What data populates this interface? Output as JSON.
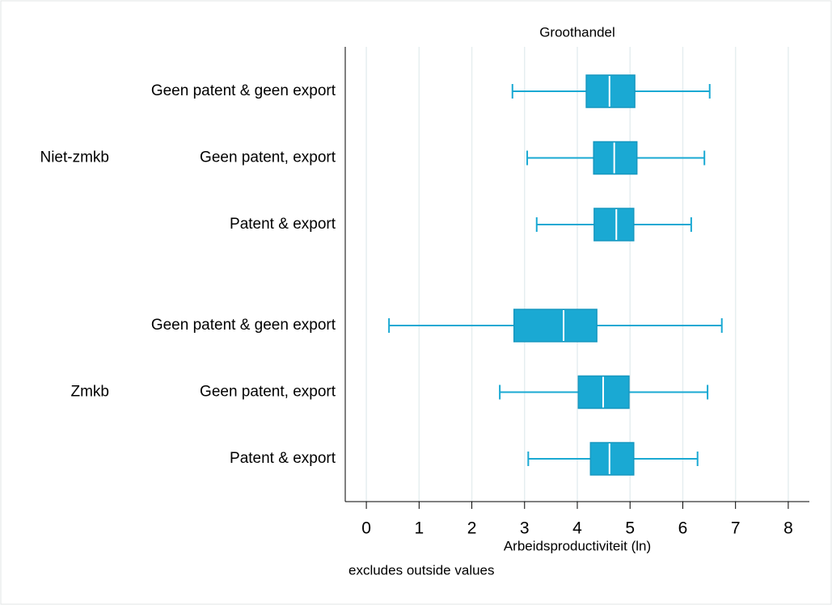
{
  "chart_data": {
    "type": "box",
    "title": "Groothandel",
    "x_label": "Arbeidsproductiviteit (ln)",
    "note": "excludes outside values",
    "color": "#1aa9d3",
    "orientation": "horizontal",
    "xlim": [
      -0.4,
      8.4
    ],
    "xticks": [
      0,
      1,
      2,
      3,
      4,
      5,
      6,
      7,
      8
    ],
    "grid": true,
    "groups": [
      {
        "name": "Niet-zmkb",
        "boxes": [
          {
            "label": "Geen patent & geen export",
            "min": 2.77,
            "q1": 4.17,
            "median": 4.61,
            "q3": 5.09,
            "max": 6.51
          },
          {
            "label": "Geen patent, export",
            "min": 3.05,
            "q1": 4.31,
            "median": 4.7,
            "q3": 5.13,
            "max": 6.41
          },
          {
            "label": "Patent & export",
            "min": 3.23,
            "q1": 4.32,
            "median": 4.74,
            "q3": 5.07,
            "max": 6.16
          }
        ]
      },
      {
        "name": "Zmkb",
        "boxes": [
          {
            "label": "Geen patent & geen export",
            "min": 0.43,
            "q1": 2.8,
            "median": 3.74,
            "q3": 4.37,
            "max": 6.74
          },
          {
            "label": "Geen patent, export",
            "min": 2.53,
            "q1": 4.02,
            "median": 4.49,
            "q3": 4.98,
            "max": 6.47
          },
          {
            "label": "Patent & export",
            "min": 3.07,
            "q1": 4.25,
            "median": 4.61,
            "q3": 5.07,
            "max": 6.28
          }
        ]
      }
    ]
  }
}
